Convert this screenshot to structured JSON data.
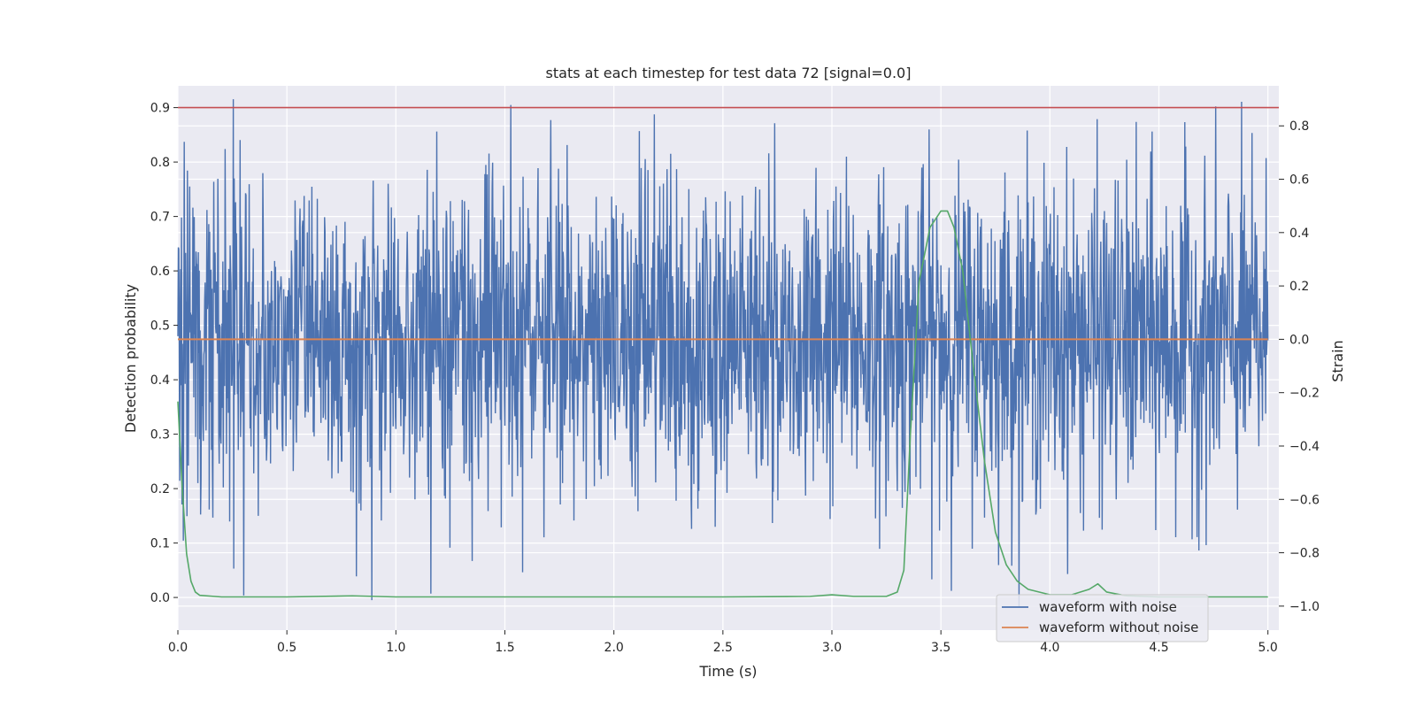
{
  "chart_data": {
    "type": "line",
    "title": "stats at each timestep for test data 72 [signal=0.0]",
    "xlabel": "Time (s)",
    "ylabel": "Detection probability",
    "ylabel_right": "Strain",
    "xlim": [
      0.0,
      5.05
    ],
    "ylim": [
      -0.06,
      0.94
    ],
    "ylim_right": [
      -1.09,
      0.95
    ],
    "x_ticks": [
      0.0,
      0.5,
      1.0,
      1.5,
      2.0,
      2.5,
      3.0,
      3.5,
      4.0,
      4.5,
      5.0
    ],
    "x_tick_labels": [
      "0.0",
      "0.5",
      "1.0",
      "1.5",
      "2.0",
      "2.5",
      "3.0",
      "3.5",
      "4.0",
      "4.5",
      "5.0"
    ],
    "y_ticks": [
      0.0,
      0.1,
      0.2,
      0.3,
      0.4,
      0.5,
      0.6,
      0.7,
      0.8,
      0.9
    ],
    "y_tick_labels": [
      "0.0",
      "0.1",
      "0.2",
      "0.3",
      "0.4",
      "0.5",
      "0.6",
      "0.7",
      "0.8",
      "0.9"
    ],
    "y_right_ticks": [
      -1.0,
      -0.8,
      -0.6,
      -0.4,
      -0.2,
      0.0,
      0.2,
      0.4,
      0.6,
      0.8
    ],
    "y_right_tick_labels": [
      "−1.0",
      "−0.8",
      "−0.6",
      "−0.4",
      "−0.2",
      "0.0",
      "0.2",
      "0.4",
      "0.6",
      "0.8"
    ],
    "grid": true,
    "legend_position": "bottom-right",
    "threshold": {
      "value": 0.9,
      "color": "#c44e52"
    },
    "series": [
      {
        "name": "waveform with noise",
        "axis": "right",
        "color": "#4c72b0",
        "x_range": [
          0.0,
          5.0
        ],
        "amplitude_range": [
          -1.0,
          0.9
        ],
        "rendering": "dense noise"
      },
      {
        "name": "waveform without noise",
        "axis": "right",
        "color": "#dd8452",
        "x": [
          0.0,
          5.0
        ],
        "values": [
          0.0,
          0.0
        ]
      },
      {
        "axis": "left",
        "color": "#55a868",
        "x": [
          0.0,
          0.02,
          0.04,
          0.06,
          0.08,
          0.1,
          0.2,
          0.5,
          0.8,
          1.0,
          1.5,
          2.0,
          2.5,
          2.9,
          3.0,
          3.1,
          3.25,
          3.3,
          3.33,
          3.36,
          3.4,
          3.45,
          3.5,
          3.53,
          3.56,
          3.6,
          3.65,
          3.7,
          3.75,
          3.8,
          3.85,
          3.9,
          4.0,
          4.1,
          4.18,
          4.22,
          4.26,
          4.35,
          4.5,
          5.0
        ],
        "values": [
          0.36,
          0.2,
          0.08,
          0.03,
          0.01,
          0.004,
          0.001,
          0.001,
          0.003,
          0.001,
          0.001,
          0.001,
          0.001,
          0.002,
          0.005,
          0.002,
          0.002,
          0.01,
          0.05,
          0.3,
          0.58,
          0.68,
          0.71,
          0.71,
          0.68,
          0.6,
          0.42,
          0.25,
          0.12,
          0.06,
          0.03,
          0.015,
          0.005,
          0.005,
          0.015,
          0.025,
          0.01,
          0.003,
          0.001,
          0.001
        ]
      }
    ]
  }
}
